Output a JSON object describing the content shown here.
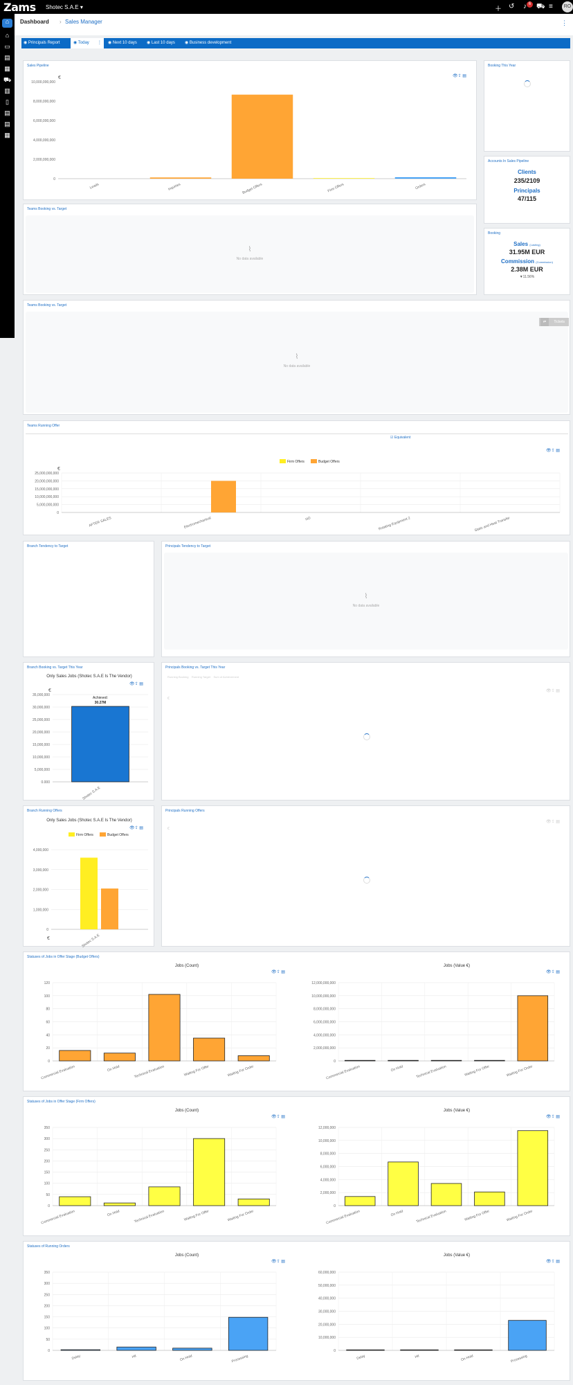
{
  "topbar": {
    "logo": "Zams",
    "company": "Shotec S.A.E",
    "notif_count": "6",
    "avatar": "RO"
  },
  "header": {
    "crumb_root": "Dashboard",
    "crumb_current": "Sales Manager"
  },
  "tabs": [
    {
      "label": "Principals Report"
    },
    {
      "label": "Today"
    },
    {
      "label": "Next 10 days"
    },
    {
      "label": "Last 10 days"
    },
    {
      "label": "Business development"
    }
  ],
  "colors": {
    "accent": "#0c6bc6",
    "orange": "#ffa534",
    "yellow": "#ffee22",
    "blue": "#1976d2",
    "light_blue": "#4aa3f5"
  },
  "cards": {
    "sales_pipeline": "Sales Pipeline",
    "booking_this_year": "Booking This Year",
    "accounts_pipeline": "Accounts In Sales Pipeline",
    "teams_booking_1": "Teams Booking vs. Target",
    "booking": "Booking",
    "teams_booking_2": "Teams Booking vs. Target",
    "teams_running": "Teams Running Offer",
    "branch_tendency": "Branch Tendency to Target",
    "principals_tendency": "Principals Tendency to Target",
    "branch_booking": "Branch Booking vs. Target This Year",
    "principals_booking": "Principals Booking vs. Target This Year",
    "branch_running": "Branch Running Offers",
    "principals_running": "Principals Running Offers",
    "statuses_budget": "Statuses of Jobs in Offer Stage (Budget Offers)",
    "statuses_firm": "Statuses of Jobs in Offer Stage (Firm Offers)",
    "statuses_running": "Statuses of Running Orders"
  },
  "no_data": "No data available",
  "equivalent": "Equivalent",
  "tickets": "Tickets",
  "currency": "€",
  "accounts": {
    "clients_label": "Clients",
    "clients_value": "235/2109",
    "principals_label": "Principals",
    "principals_value": "47/115"
  },
  "booking": {
    "sales_label": "Sales",
    "sales_sub": "(Lasting)",
    "sales_value": "31.95M EUR",
    "commission_label": "Commission",
    "commission_sub": "(Commission)",
    "commission_value": "2.38M EUR",
    "pct": "▼11.56%"
  },
  "sub_titles": {
    "only_sales": "Only Sales Jobs (Shotec S.A.E Is The Vendor)",
    "jobs_count": "Jobs (Count)",
    "jobs_value": "Jobs (Value €)"
  },
  "legend": {
    "firm": "Firm Offers",
    "budget": "Budget Offers"
  },
  "principals_legend": [
    "Running Booking",
    "Running Target",
    "Sum of Achievement"
  ],
  "achieved_label": "Achieved:",
  "achieved_value": "30.27M",
  "chart_data": [
    {
      "id": "sales_pipeline",
      "type": "bar",
      "title": "Sales Pipeline",
      "categories": [
        "Leads",
        "Inquiries",
        "Budget Offers",
        "Firm Offers",
        "Orders"
      ],
      "values": [
        0,
        150000000,
        10400000000,
        50000000,
        180000000
      ],
      "ylim": [
        0,
        12000000000
      ],
      "yticks": [
        "0",
        "2,000,000,000",
        "4,000,000,000",
        "6,000,000,000",
        "8,000,000,000",
        "10,000,000,000"
      ],
      "colors": [
        "#ffa534",
        "#ffa534",
        "#ffa534",
        "#ffee22",
        "#4aa3f5"
      ]
    },
    {
      "id": "teams_running",
      "type": "bar",
      "title": "Teams Running Offer",
      "categories": [
        "AFTER SALES",
        "Electromechanical",
        "HO",
        "Rotating Equipment 2",
        "Static and Heat Transfer"
      ],
      "series": [
        {
          "name": "Firm Offers",
          "values": [
            0,
            0,
            0,
            0,
            0
          ]
        },
        {
          "name": "Budget Offers",
          "values": [
            0,
            20000000,
            0,
            0,
            0
          ]
        }
      ],
      "ylim": [
        0,
        25000000
      ],
      "yticks": [
        "0",
        "5,000,000,000",
        "10,000,000,000",
        "15,000,000,000",
        "20,000,000,000",
        "25,000,000,000"
      ]
    },
    {
      "id": "branch_booking",
      "type": "bar",
      "title": "Only Sales Jobs (Shotec S.A.E Is The Vendor)",
      "categories": [
        "Shotec S.A.E"
      ],
      "values": [
        30270000
      ],
      "ylim": [
        0,
        35000000
      ],
      "yticks": [
        "0.000",
        "5,000,000",
        "10,000,000",
        "15,000,000",
        "20,000,000",
        "25,000,000",
        "30,000,000",
        "35,000,000"
      ]
    },
    {
      "id": "branch_running",
      "type": "bar",
      "title": "Only Sales Jobs (Shotec S.A.E Is The Vendor)",
      "categories": [
        "Shotec S.A.E"
      ],
      "series": [
        {
          "name": "Firm Offers",
          "values": [
            3600000
          ]
        },
        {
          "name": "Budget Offers",
          "values": [
            2050000
          ]
        }
      ],
      "ylim": [
        0,
        4000000
      ],
      "yticks": [
        "0",
        "1,000,000",
        "2,000,000",
        "3,000,000",
        "4,000,000"
      ]
    },
    {
      "id": "budget_count",
      "type": "bar",
      "title": "Jobs (Count)",
      "categories": [
        "Commercial Evaluation",
        "On Hold",
        "Technical Evaluation",
        "Waiting For Offer",
        "Waiting For Order"
      ],
      "values": [
        16,
        12,
        102,
        35,
        8
      ],
      "ylim": [
        0,
        120
      ],
      "yticks": [
        "0",
        "20",
        "40",
        "60",
        "80",
        "100",
        "120"
      ],
      "color": "#ffa534"
    },
    {
      "id": "budget_value",
      "type": "bar",
      "title": "Jobs (Value €)",
      "categories": [
        "Commercial Evaluation",
        "On Hold",
        "Technical Evaluation",
        "Waiting For Offer",
        "Waiting For Order"
      ],
      "values": [
        30000,
        20000,
        10000,
        20000,
        10000000
      ],
      "ylim": [
        0,
        12000000
      ],
      "yticks": [
        "0",
        "2,000,000,000",
        "4,000,000,000",
        "6,000,000,000",
        "8,000,000,000",
        "10,000,000,000",
        "12,000,000,000"
      ],
      "color": "#ffa534"
    },
    {
      "id": "firm_count",
      "type": "bar",
      "title": "Jobs (Count)",
      "categories": [
        "Commercial Evaluation",
        "On Hold",
        "Technical Evaluation",
        "Waiting For Offer",
        "Waiting For Order"
      ],
      "values": [
        40,
        12,
        84,
        300,
        30
      ],
      "ylim": [
        0,
        350
      ],
      "yticks": [
        "0",
        "50",
        "100",
        "150",
        "200",
        "250",
        "300",
        "350"
      ],
      "color": "#ffff44"
    },
    {
      "id": "firm_value",
      "type": "bar",
      "title": "Jobs (Value €)",
      "categories": [
        "Commercial Evaluation",
        "On Hold",
        "Technical Evaluation",
        "Waiting For Offer",
        "Waiting For Order"
      ],
      "values": [
        1400000,
        6700000,
        3400000,
        2100000,
        11500000
      ],
      "ylim": [
        0,
        12000000
      ],
      "yticks": [
        "0",
        "2,000,000",
        "4,000,000",
        "6,000,000",
        "8,000,000",
        "10,000,000",
        "12,000,000"
      ],
      "color": "#ffff44"
    },
    {
      "id": "running_count",
      "type": "bar",
      "title": "Jobs (Count)",
      "categories": [
        "Delay",
        "Hit",
        "On Hold",
        "Processing"
      ],
      "values": [
        3,
        15,
        10,
        148
      ],
      "ylim": [
        0,
        350
      ],
      "yticks": [
        "0",
        "50",
        "100",
        "150",
        "200",
        "250",
        "300",
        "350"
      ],
      "color": "#4aa3f5"
    },
    {
      "id": "running_value",
      "type": "bar",
      "title": "Jobs (Value €)",
      "categories": [
        "Delay",
        "Hit",
        "On Hold",
        "Processing"
      ],
      "values": [
        200000,
        100000,
        200000,
        23000000
      ],
      "ylim": [
        0,
        60000000
      ],
      "yticks": [
        "0",
        "10,000,000",
        "20,000,000",
        "30,000,000",
        "40,000,000",
        "50,000,000",
        "60,000,000"
      ],
      "color": "#4aa3f5"
    }
  ]
}
